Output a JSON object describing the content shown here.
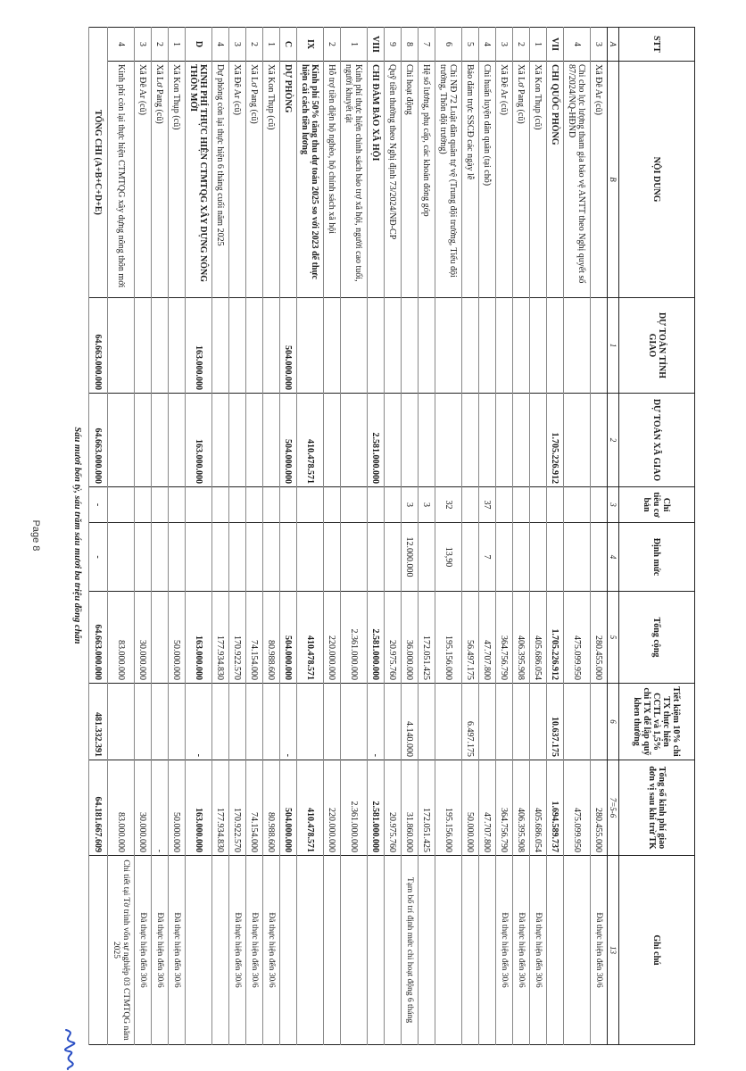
{
  "header": {
    "stt": "STT",
    "content": "NỘI DUNG",
    "province_budget": "DỰ TOÁN TỈNH GIAO",
    "commune_budget": "DỰ TOÁN XÃ GIAO",
    "basic_target": "Chỉ tiêu cơ bản",
    "norm": "Định mức",
    "total": "Tổng cộng",
    "savings": "Tiết kiệm 10% chi TX thực hiện CCTL và 1,5% chi TX để lập quỹ khen thưởng",
    "allocated_after": "Tổng số kinh phí giao đơn vị sau khi trừ TK",
    "note": "Ghi chú"
  },
  "index_row": [
    "A",
    "B",
    "1",
    "2",
    "3",
    "4",
    "5",
    "6",
    "7=5-6",
    "13"
  ],
  "rows": [
    {
      "stt": "3",
      "content": "Xã Đê Ar (cũ)",
      "tinh": "",
      "xa": "",
      "chitieu": "",
      "dinhmuc": "",
      "tong": "280.455.000",
      "tietkiem": "",
      "tongso": "280.455.000",
      "ghichu": "Đã thực hiện đến 30/6",
      "bold": false,
      "tall": false
    },
    {
      "stt": "4",
      "content": "Chi cho lực lượng tham gia bảo vệ ANTT theo Nghị quyết số 87/2024/NQ-HĐND",
      "tinh": "",
      "xa": "",
      "chitieu": "",
      "dinhmuc": "",
      "tong": "475.099.950",
      "tietkiem": "",
      "tongso": "475.099.950",
      "ghichu": "",
      "bold": false,
      "tall": true
    },
    {
      "stt": "VII",
      "content": "CHI QUỐC PHÒNG",
      "tinh": "",
      "xa": "1.705.226.912",
      "chitieu": "",
      "dinhmuc": "",
      "tong": "1.705.226.912",
      "tietkiem": "10.637.175",
      "tongso": "1.694.589.737",
      "ghichu": "",
      "bold": true,
      "tall": false
    },
    {
      "stt": "1",
      "content": "Xã Kon Thụp (cũ)",
      "tinh": "",
      "xa": "",
      "chitieu": "",
      "dinhmuc": "",
      "tong": "405.686.054",
      "tietkiem": "",
      "tongso": "405.686.054",
      "ghichu": "Đã thực hiện đến 30/6",
      "bold": false,
      "tall": false
    },
    {
      "stt": "2",
      "content": "Xã Lơ Pang (cũ)",
      "tinh": "",
      "xa": "",
      "chitieu": "",
      "dinhmuc": "",
      "tong": "406.395.908",
      "tietkiem": "",
      "tongso": "406.395.908",
      "ghichu": "Đã thực hiện đến 30/6",
      "bold": false,
      "tall": false
    },
    {
      "stt": "3",
      "content": "Xã Đê Ar (cũ)",
      "tinh": "",
      "xa": "",
      "chitieu": "",
      "dinhmuc": "",
      "tong": "364.756.790",
      "tietkiem": "",
      "tongso": "364.756.790",
      "ghichu": "Đã thực hiện đến 30/6",
      "bold": false,
      "tall": false
    },
    {
      "stt": "4",
      "content": "Chi huấn luyện dân quân (tại chỗ)",
      "tinh": "",
      "xa": "",
      "chitieu": "37",
      "dinhmuc": "7",
      "tong": "47.707.800",
      "tietkiem": "",
      "tongso": "47.707.800",
      "ghichu": "",
      "bold": false,
      "tall": false
    },
    {
      "stt": "5",
      "content": "Bảo đảm trực SSCĐ các ngày lễ",
      "tinh": "",
      "xa": "",
      "chitieu": "",
      "dinhmuc": "",
      "tong": "56.497.175",
      "tietkiem": "6.497.175",
      "tongso": "50.000.000",
      "ghichu": "",
      "bold": false,
      "tall": false
    },
    {
      "stt": "6",
      "content": "Chi NĐ 72 Luật dân quân tự vệ (Trung đội trưởng, Tiểu đội trưởng, Thôn đội trưởng)",
      "tinh": "",
      "xa": "",
      "chitieu": "32",
      "dinhmuc": "13,90",
      "tong": "195.156.000",
      "tietkiem": "",
      "tongso": "195.156.000",
      "ghichu": "",
      "bold": false,
      "tall": true
    },
    {
      "stt": "7",
      "content": "Hệ số lương, phụ cấp, các khoản đóng góp",
      "tinh": "",
      "xa": "",
      "chitieu": "3",
      "dinhmuc": "",
      "tong": "172.051.425",
      "tietkiem": "",
      "tongso": "172.051.425",
      "ghichu": "",
      "bold": false,
      "tall": false
    },
    {
      "stt": "8",
      "content": "Chi hoạt động",
      "tinh": "",
      "xa": "",
      "chitieu": "3",
      "dinhmuc": "12.000.000",
      "tong": "36.000.000",
      "tietkiem": "4.140.000",
      "tongso": "31.860.000",
      "ghichu": "Tạm bố trí định mức chi hoạt động 6 tháng",
      "bold": false,
      "tall": false
    },
    {
      "stt": "9",
      "content": "Quỹ tiền thưởng theo Nghị định 73/2024/NĐ-CP",
      "tinh": "",
      "xa": "",
      "chitieu": "",
      "dinhmuc": "",
      "tong": "20.975.760",
      "tietkiem": "",
      "tongso": "20.975.760",
      "ghichu": "",
      "bold": false,
      "tall": false
    },
    {
      "stt": "VIII",
      "content": "CHI ĐẢM BẢO XÃ HỘI",
      "tinh": "",
      "xa": "2.581.000.000",
      "chitieu": "",
      "dinhmuc": "",
      "tong": "2.581.000.000",
      "tietkiem": "-",
      "tongso": "2.581.000.000",
      "ghichu": "",
      "bold": true,
      "tall": false
    },
    {
      "stt": "1",
      "content": "Kinh phí thực hiện chính sách bảo trợ xã hội, người cao tuổi, người khuyết tật",
      "tinh": "",
      "xa": "",
      "chitieu": "",
      "dinhmuc": "",
      "tong": "2.361.000.000",
      "tietkiem": "",
      "tongso": "2.361.000.000",
      "ghichu": "",
      "bold": false,
      "tall": true
    },
    {
      "stt": "2",
      "content": "Hỗ trợ tiền điện hộ nghèo, hộ chính sách xã hội",
      "tinh": "",
      "xa": "",
      "chitieu": "",
      "dinhmuc": "",
      "tong": "220.000.000",
      "tietkiem": "",
      "tongso": "220.000.000",
      "ghichu": "",
      "bold": false,
      "tall": false
    },
    {
      "stt": "IX",
      "content": "Kinh phí 50% tăng thu dự toán 2025 so với 2023 để thực hiện cải cách tiền lương",
      "tinh": "",
      "xa": "410.478.571",
      "chitieu": "",
      "dinhmuc": "",
      "tong": "410.478.571",
      "tietkiem": "",
      "tongso": "410.478.571",
      "ghichu": "",
      "bold": true,
      "tall": true
    },
    {
      "stt": "C",
      "content": "DỰ PHÒNG",
      "tinh": "504.000.000",
      "xa": "504.000.000",
      "chitieu": "",
      "dinhmuc": "",
      "tong": "504.000.000",
      "tietkiem": "-",
      "tongso": "504.000.000",
      "ghichu": "",
      "bold": true,
      "tall": false
    },
    {
      "stt": "1",
      "content": "Xã Kon Thụp (cũ)",
      "tinh": "",
      "xa": "",
      "chitieu": "",
      "dinhmuc": "",
      "tong": "80.988.600",
      "tietkiem": "",
      "tongso": "80.988.600",
      "ghichu": "Đã thực hiện đến 30/6",
      "bold": false,
      "tall": false
    },
    {
      "stt": "2",
      "content": "Xã Lơ Pang (cũ)",
      "tinh": "",
      "xa": "",
      "chitieu": "",
      "dinhmuc": "",
      "tong": "74.154.000",
      "tietkiem": "",
      "tongso": "74.154.000",
      "ghichu": "Đã thực hiện đến 30/6",
      "bold": false,
      "tall": false
    },
    {
      "stt": "3",
      "content": "Xã Đê Ar (cũ)",
      "tinh": "",
      "xa": "",
      "chitieu": "",
      "dinhmuc": "",
      "tong": "170.922.570",
      "tietkiem": "",
      "tongso": "170.922.570",
      "ghichu": "Đã thực hiện đến 30/6",
      "bold": false,
      "tall": false
    },
    {
      "stt": "4",
      "content": "Dự phòng còn lại thực hiện 6 tháng cuối năm 2025",
      "tinh": "",
      "xa": "",
      "chitieu": "",
      "dinhmuc": "",
      "tong": "177.934.830",
      "tietkiem": "",
      "tongso": "177.934.830",
      "ghichu": "",
      "bold": false,
      "tall": false
    },
    {
      "stt": "D",
      "content": "KINH PHÍ THỰC HIỆN CTMTQG XÂY DỰNG NÔNG THÔN MỚI",
      "tinh": "163.000.000",
      "xa": "163.000.000",
      "chitieu": "",
      "dinhmuc": "",
      "tong": "163.000.000",
      "tietkiem": "-",
      "tongso": "163.000.000",
      "ghichu": "",
      "bold": true,
      "tall": true
    },
    {
      "stt": "1",
      "content": "Xã Kon Thụp (cũ)",
      "tinh": "",
      "xa": "",
      "chitieu": "",
      "dinhmuc": "",
      "tong": "50.000.000",
      "tietkiem": "",
      "tongso": "50.000.000",
      "ghichu": "Đã thực hiện đến 30/6",
      "bold": false,
      "tall": false
    },
    {
      "stt": "2",
      "content": "Xã Lơ Pang (cũ)",
      "tinh": "",
      "xa": "",
      "chitieu": "",
      "dinhmuc": "",
      "tong": "",
      "tietkiem": "",
      "tongso": "-",
      "ghichu": "Đã thực hiện đến 30/6",
      "bold": false,
      "tall": false
    },
    {
      "stt": "3",
      "content": "Xã Đê Ar (cũ)",
      "tinh": "",
      "xa": "",
      "chitieu": "",
      "dinhmuc": "",
      "tong": "30.000.000",
      "tietkiem": "",
      "tongso": "30.000.000",
      "ghichu": "Đã thực hiện đến 30/6",
      "bold": false,
      "tall": false
    },
    {
      "stt": "4",
      "content": "Kinh phí còn lại thực hiện CTMTQG xây dựng nông thôn mới",
      "tinh": "",
      "xa": "",
      "chitieu": "",
      "dinhmuc": "",
      "tong": "83.000.000",
      "tietkiem": "",
      "tongso": "83.000.000",
      "ghichu": "Chi tiết tại Tờ trình vốn sự nghiệp 03 CTMTQG năm 2025",
      "bold": false,
      "tall": true
    }
  ],
  "total_row": {
    "label": "TỔNG CHI (A+B+C+D+E)",
    "tinh": "64.663.000.000",
    "xa": "64.663.000.000",
    "chitieu": "-",
    "dinhmuc": "-",
    "tong": "64.663.000.000",
    "tietkiem": "481.332.391",
    "tongso": "64.181.667.609"
  },
  "footer": {
    "amount_in_words": "Sáu mươi bốn tỷ, sáu trăm sáu mươi ba triệu đồng chẵn",
    "page_label": "Page 8"
  },
  "signature_color": "#2a4fc4"
}
